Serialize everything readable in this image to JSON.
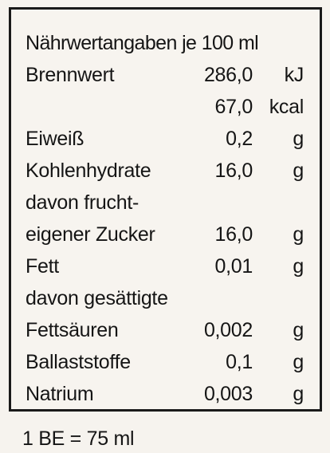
{
  "table": {
    "heading": "Nährwertangaben je 100 ml",
    "rows": [
      {
        "label": "Brennwert",
        "value": "286,0",
        "unit": "kJ"
      },
      {
        "label": "",
        "value": "67,0",
        "unit": "kcal"
      },
      {
        "label": "Eiweiß",
        "value": "0,2",
        "unit": "g"
      },
      {
        "label": "Kohlenhydrate",
        "value": "16,0",
        "unit": "g"
      },
      {
        "label": "davon frucht-",
        "value": "",
        "unit": ""
      },
      {
        "label": "eigener Zucker",
        "value": "16,0",
        "unit": "g"
      },
      {
        "label": "Fett",
        "value": "0,01",
        "unit": "g"
      },
      {
        "label": "davon gesättigte",
        "value": "",
        "unit": ""
      },
      {
        "label": "Fettsäuren",
        "value": "0,002",
        "unit": "g"
      },
      {
        "label": "Ballaststoffe",
        "value": "0,1",
        "unit": "g"
      },
      {
        "label": "Natrium",
        "value": "0,003",
        "unit": "g"
      }
    ]
  },
  "footnote": "1 BE = 75 ml"
}
